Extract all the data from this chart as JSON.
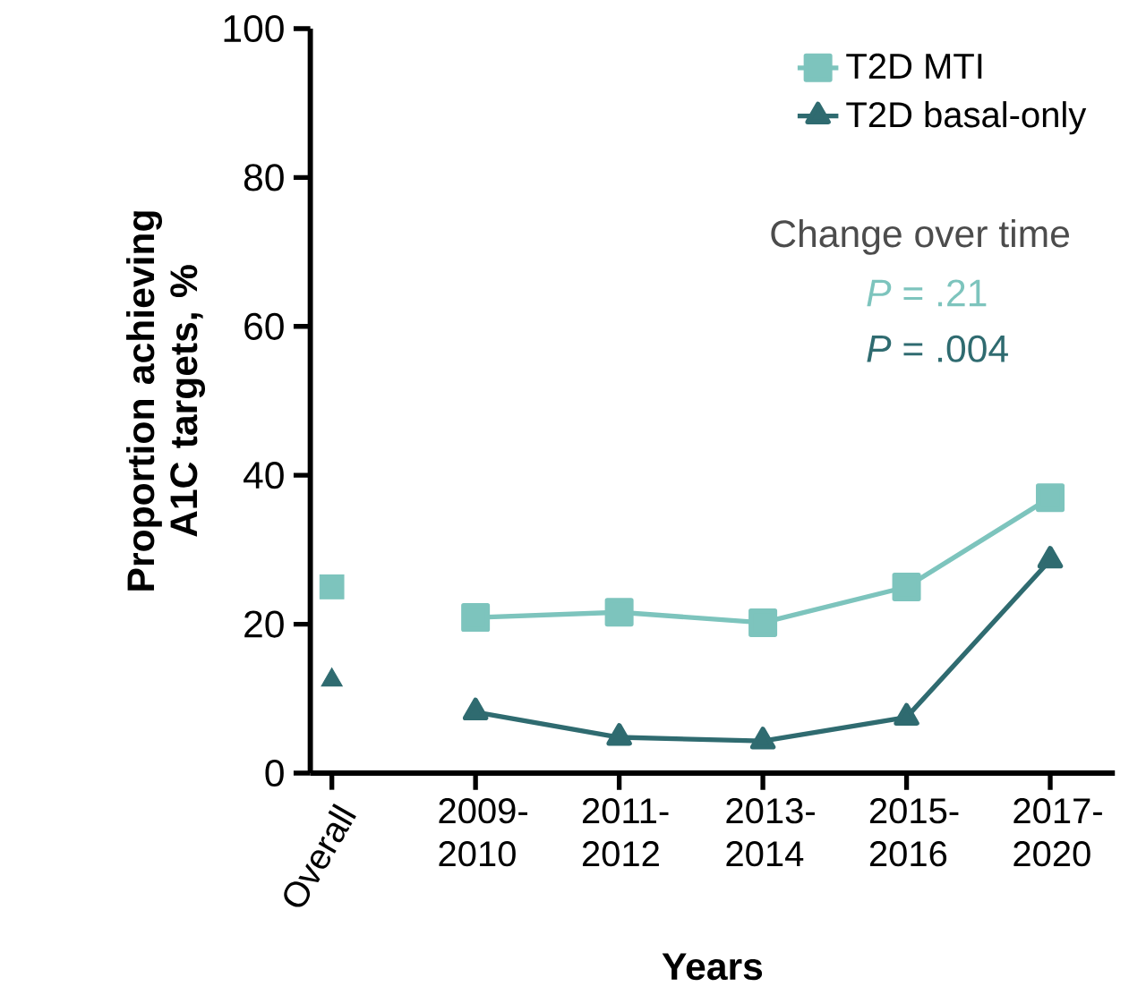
{
  "chart_data": {
    "type": "line",
    "xlabel": "Years",
    "ylabel": "Proportion achieving A1C targets, %",
    "categories": [
      "Overall",
      "2009-2010",
      "2011-2012",
      "2013-2014",
      "2015-2016",
      "2017-2020"
    ],
    "series": [
      {
        "name": "T2D MTI",
        "color": "#7dc4bd",
        "marker": "square",
        "values": [
          null,
          20.9,
          21.6,
          20.2,
          25.0,
          37.0
        ]
      },
      {
        "name": "T2D basal-only",
        "color": "#2f6b70",
        "marker": "triangle",
        "values": [
          null,
          8.2,
          4.8,
          4.3,
          7.5,
          28.6
        ]
      },
      {
        "type": "scatter",
        "color": "#7dc4bd",
        "marker": "square",
        "values": [
          25.0,
          null,
          null,
          null,
          null,
          null
        ]
      },
      {
        "type": "scatter",
        "color": "#2f6b70",
        "marker": "triangle down",
        "values": [
          12.5,
          null,
          null,
          null,
          null,
          null
        ]
      }
    ],
    "ylim": [
      0,
      100
    ],
    "yticks": [
      0,
      20,
      40,
      60,
      80,
      100
    ],
    "legend": "top right",
    "grid": false,
    "annotations": [
      "Change over time",
      "*P* = .21",
      "*P* = .004"
    ]
  }
}
